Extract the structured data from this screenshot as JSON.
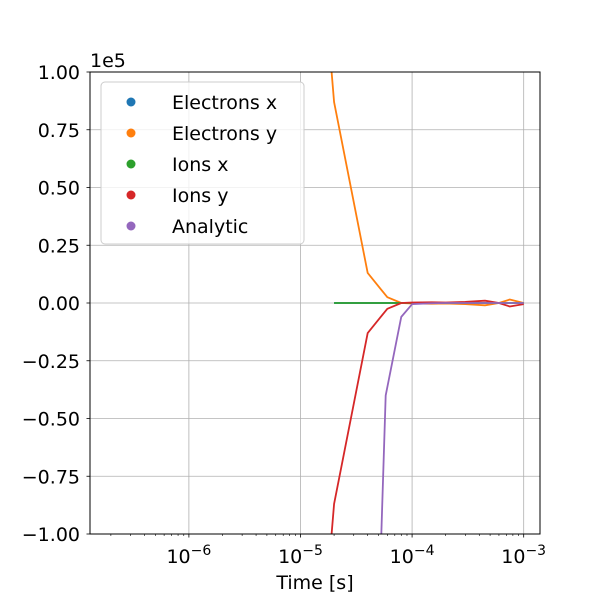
{
  "chart_data": {
    "type": "line",
    "title": "",
    "xlabel": "Time [s]",
    "ylabel": "",
    "x_scale": "log",
    "xlim": [
      1.3e-07,
      0.0014
    ],
    "ylim": [
      -100000,
      100000
    ],
    "offset_text": "1e5",
    "grid": true,
    "legend_position": "upper-left",
    "x_ticks": [
      {
        "value": 1e-06,
        "base": "10",
        "exp": "−6"
      },
      {
        "value": 1e-05,
        "base": "10",
        "exp": "−5"
      },
      {
        "value": 0.0001,
        "base": "10",
        "exp": "−4"
      },
      {
        "value": 0.001,
        "base": "10",
        "exp": "−3"
      }
    ],
    "y_ticks": [
      {
        "value": -100000,
        "label": "−1.00"
      },
      {
        "value": -75000,
        "label": "−0.75"
      },
      {
        "value": -50000,
        "label": "−0.50"
      },
      {
        "value": -25000,
        "label": "−0.25"
      },
      {
        "value": 0,
        "label": "0.00"
      },
      {
        "value": 25000,
        "label": "0.25"
      },
      {
        "value": 50000,
        "label": "0.50"
      },
      {
        "value": 75000,
        "label": "0.75"
      },
      {
        "value": 100000,
        "label": "1.00"
      }
    ],
    "series": [
      {
        "name": "Electrons x",
        "color": "#1f77b4",
        "x": [
          2e-05,
          4e-05,
          6e-05,
          8e-05,
          0.0001,
          0.0002,
          0.0004,
          0.0006,
          0.0008,
          0.001
        ],
        "y": [
          0,
          0,
          0,
          0,
          0,
          0,
          0,
          0,
          0,
          0
        ]
      },
      {
        "name": "Electrons y",
        "color": "#ff7f0e",
        "x": [
          1.9e-05,
          2e-05,
          4e-05,
          6e-05,
          8e-05,
          0.0001,
          0.00015,
          0.0002,
          0.0003,
          0.00045,
          0.0006,
          0.00075,
          0.001
        ],
        "y": [
          100000,
          87000,
          13000,
          2500,
          0,
          -200,
          -300,
          -200,
          -500,
          -1000,
          0,
          1500,
          0
        ]
      },
      {
        "name": "Ions x",
        "color": "#2ca02c",
        "x": [
          2e-05,
          4e-05,
          6e-05,
          8e-05,
          0.0001,
          0.0002,
          0.0004,
          0.0006,
          0.0008,
          0.001
        ],
        "y": [
          0,
          0,
          0,
          0,
          0,
          0,
          0,
          0,
          0,
          0
        ]
      },
      {
        "name": "Ions y",
        "color": "#d62728",
        "x": [
          1.9e-05,
          2e-05,
          4e-05,
          6e-05,
          8e-05,
          0.0001,
          0.00015,
          0.0002,
          0.0003,
          0.00045,
          0.0006,
          0.00075,
          0.001
        ],
        "y": [
          -100000,
          -87000,
          -13000,
          -2500,
          0,
          200,
          300,
          200,
          500,
          1000,
          0,
          -1500,
          -500
        ]
      },
      {
        "name": "Analytic",
        "color": "#9467bd",
        "x": [
          5.3e-05,
          5.8e-05,
          8e-05,
          0.0001,
          0.00015,
          0.0002,
          0.0004,
          0.0006,
          0.0008,
          0.001
        ],
        "y": [
          -100000,
          -40000,
          -6000,
          -500,
          -100,
          0,
          0,
          0,
          0,
          0
        ]
      }
    ]
  }
}
